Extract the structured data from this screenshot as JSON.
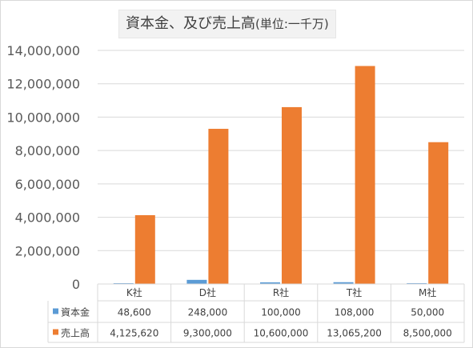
{
  "chart_data": {
    "type": "bar",
    "title": "資本金、及び売上高",
    "unit_label": "(単位:一千万)",
    "categories": [
      "K社",
      "D社",
      "R社",
      "T社",
      "M社"
    ],
    "series": [
      {
        "name": "資本金",
        "color": "#5b9bd5",
        "values": [
          48600,
          248000,
          100000,
          108000,
          50000
        ]
      },
      {
        "name": "売上高",
        "color": "#ed7d31",
        "values": [
          4125620,
          9300000,
          10600000,
          13065200,
          8500000
        ]
      }
    ],
    "data_table": {
      "rows": [
        [
          "48,600",
          "248,000",
          "100,000",
          "108,000",
          "50,000"
        ],
        [
          "4,125,620",
          "9,300,000",
          "10,600,000",
          "13,065,200",
          "8,500,000"
        ]
      ]
    },
    "yticks": [
      "0",
      "2,000,000",
      "4,000,000",
      "6,000,000",
      "8,000,000",
      "10,000,000",
      "12,000,000",
      "14,000,000"
    ],
    "ylim": [
      0,
      14000000
    ],
    "grid": true,
    "legend": "data-table"
  }
}
